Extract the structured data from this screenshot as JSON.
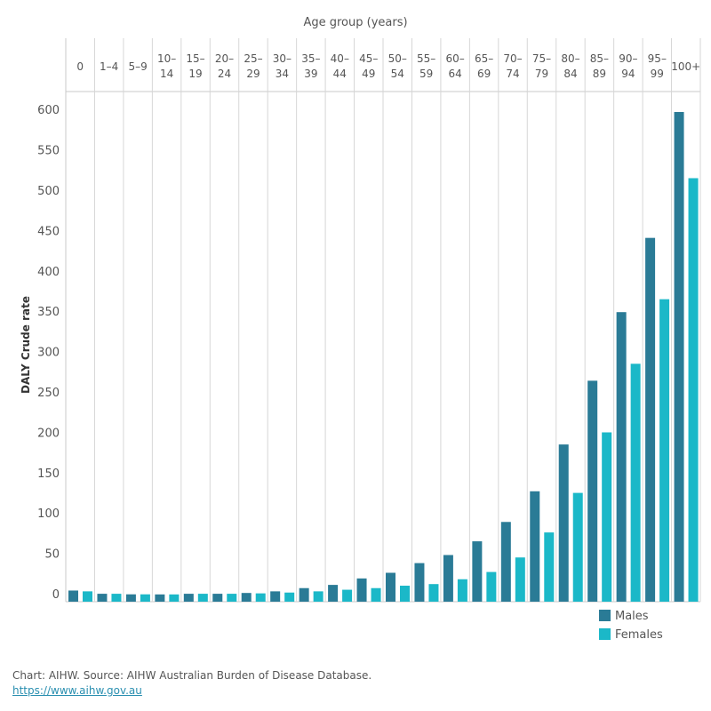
{
  "chart_data": {
    "type": "bar",
    "title": "Age group (years)",
    "ylabel": "DALY Crude rate",
    "categories": [
      [
        "0"
      ],
      [
        "1–4"
      ],
      [
        "5–9"
      ],
      [
        "10–",
        "14"
      ],
      [
        "15–",
        "19"
      ],
      [
        "20–",
        "24"
      ],
      [
        "25–",
        "29"
      ],
      [
        "30–",
        "34"
      ],
      [
        "35–",
        "39"
      ],
      [
        "40–",
        "44"
      ],
      [
        "45–",
        "49"
      ],
      [
        "50–",
        "54"
      ],
      [
        "55–",
        "59"
      ],
      [
        "60–",
        "64"
      ],
      [
        "65–",
        "69"
      ],
      [
        "70–",
        "74"
      ],
      [
        "75–",
        "79"
      ],
      [
        "80–",
        "84"
      ],
      [
        "85–",
        "89"
      ],
      [
        "90–",
        "94"
      ],
      [
        "95–",
        "99"
      ],
      [
        "100+"
      ]
    ],
    "series": [
      {
        "name": "Males",
        "color": "#2a7b96",
        "values": [
          5,
          1,
          0.3,
          0.2,
          1,
          1,
          2,
          4,
          8,
          12,
          20,
          27,
          39,
          49,
          66,
          90,
          128,
          186,
          265,
          350,
          442,
          598
        ]
      },
      {
        "name": "Females",
        "color": "#1bb8c8",
        "values": [
          4,
          1,
          0.3,
          0.2,
          1,
          1,
          1.5,
          2.5,
          4,
          6,
          8,
          11,
          13,
          19,
          28,
          46,
          77,
          126,
          201,
          286,
          366,
          516
        ]
      }
    ],
    "ylim": [
      0,
      620
    ],
    "yticks": [
      0,
      50,
      100,
      150,
      200,
      250,
      300,
      350,
      400,
      450,
      500,
      550,
      600
    ],
    "legend_position": "bottom-right",
    "grid": "vertical category separators"
  },
  "footer": {
    "source": "Chart: AIHW. Source: AIHW Australian Burden of Disease Database.",
    "link": "https://www.aihw.gov.au"
  }
}
